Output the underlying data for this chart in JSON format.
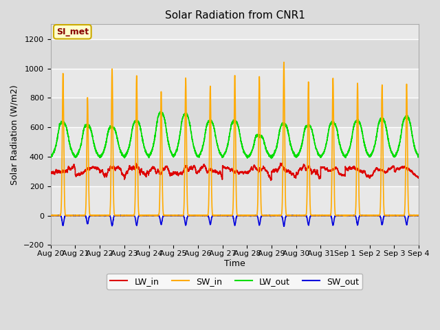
{
  "title": "Solar Radiation from CNR1",
  "xlabel": "Time",
  "ylabel": "Solar Radiation (W/m2)",
  "ylim": [
    -200,
    1300
  ],
  "yticks": [
    -200,
    0,
    200,
    400,
    600,
    800,
    1000,
    1200
  ],
  "x_labels": [
    "Aug 20",
    "Aug 21",
    "Aug 22",
    "Aug 23",
    "Aug 24",
    "Aug 25",
    "Aug 26",
    "Aug 27",
    "Aug 28",
    "Aug 29",
    "Aug 30",
    "Aug 31",
    "Sep 1",
    "Sep 2",
    "Sep 3",
    "Sep 4"
  ],
  "n_days": 15,
  "bg_color": "#dcdcdc",
  "plot_bg_color": "#e8e8e8",
  "legend_label": "SI_met",
  "legend_bg": "#ffffcc",
  "legend_border": "#ccaa00",
  "series": {
    "LW_in": {
      "color": "#dd0000",
      "lw": 1.2
    },
    "SW_in": {
      "color": "#ffaa00",
      "lw": 1.2
    },
    "LW_out": {
      "color": "#00dd00",
      "lw": 1.2
    },
    "SW_out": {
      "color": "#0000dd",
      "lw": 1.2
    }
  },
  "sw_peaks": [
    965,
    800,
    1000,
    950,
    840,
    935,
    880,
    955,
    945,
    1045,
    910,
    935,
    900,
    890,
    890
  ],
  "lw_out_peaks": [
    630,
    610,
    600,
    640,
    700,
    690,
    640,
    640,
    540,
    620,
    610,
    630,
    640,
    655,
    670
  ],
  "lw_out_base": 390,
  "lw_in_base": 285,
  "title_fontsize": 11,
  "axis_fontsize": 9,
  "tick_fontsize": 8
}
